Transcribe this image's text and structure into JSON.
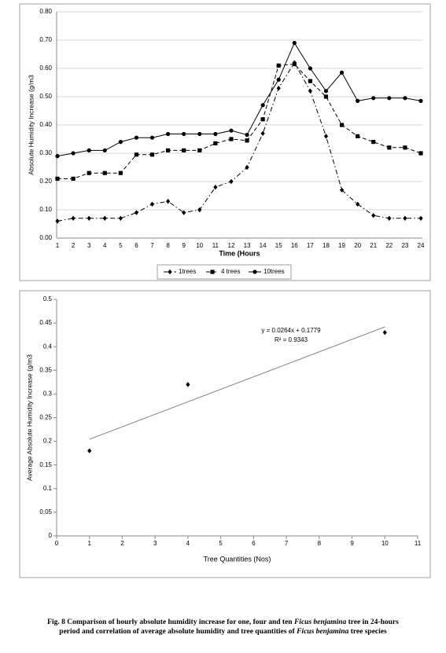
{
  "chart_data": [
    {
      "type": "line",
      "y_label": "Absolute Humidity Increase (g/m3",
      "x_label": "Time (Hours",
      "categories": [
        1,
        2,
        3,
        4,
        5,
        6,
        7,
        8,
        9,
        10,
        11,
        12,
        13,
        14,
        15,
        16,
        17,
        18,
        19,
        20,
        21,
        22,
        23,
        24
      ],
      "series": [
        {
          "name": "1trees",
          "color": "#000000",
          "dash": "dashdot",
          "marker": "diamond",
          "values": [
            0.06,
            0.07,
            0.07,
            0.07,
            0.07,
            0.09,
            0.12,
            0.13,
            0.09,
            0.1,
            0.18,
            0.2,
            0.25,
            0.37,
            0.53,
            0.62,
            0.52,
            0.36,
            0.17,
            0.12,
            0.08,
            0.07,
            0.07,
            0.07
          ]
        },
        {
          "name": "4 trees",
          "color": "#000000",
          "dash": "dashed",
          "marker": "square",
          "values": [
            0.21,
            0.21,
            0.23,
            0.23,
            0.23,
            0.295,
            0.295,
            0.31,
            0.31,
            0.31,
            0.335,
            0.35,
            0.345,
            0.42,
            0.61,
            0.615,
            0.555,
            0.5,
            0.4,
            0.36,
            0.34,
            0.32,
            0.32,
            0.3
          ]
        },
        {
          "name": "10trees",
          "color": "#000000",
          "dash": "solid",
          "marker": "circle",
          "values": [
            0.29,
            0.3,
            0.31,
            0.31,
            0.34,
            0.355,
            0.355,
            0.368,
            0.368,
            0.368,
            0.368,
            0.38,
            0.365,
            0.47,
            0.56,
            0.69,
            0.6,
            0.52,
            0.585,
            0.485,
            0.495,
            0.495,
            0.495,
            0.485
          ]
        }
      ],
      "ylim": [
        0,
        0.8
      ],
      "yticks": [
        {
          "value": 0,
          "label": "0.00"
        },
        {
          "value": 0.1,
          "label": "0.10"
        },
        {
          "value": 0.2,
          "label": "0.20"
        },
        {
          "value": 0.3,
          "label": "0.30"
        },
        {
          "value": 0.4,
          "label": "0.40"
        },
        {
          "value": 0.5,
          "label": "0.50"
        },
        {
          "value": 0.6,
          "label": "0.60"
        },
        {
          "value": 0.7,
          "label": "0.70"
        },
        {
          "value": 0.8,
          "label": "0.80"
        }
      ],
      "grid": true,
      "legend": "bottom"
    },
    {
      "type": "scatter",
      "y_label": "Average Absolute Humidity Increase (g/m3",
      "x_label": "Tree Quantities (Nos)",
      "x": [
        1,
        4,
        10
      ],
      "y": [
        0.18,
        0.32,
        0.43
      ],
      "color": "#000000",
      "xlim": [
        0,
        11
      ],
      "xticks": [
        0,
        1,
        2,
        3,
        4,
        5,
        6,
        7,
        8,
        9,
        10,
        11
      ],
      "ylim": [
        0,
        0.5
      ],
      "yticks": [
        0,
        0.05,
        0.1,
        0.15,
        0.2,
        0.25,
        0.3,
        0.35,
        0.4,
        0.45,
        0.5
      ],
      "grid": false,
      "trendline": {
        "slope": 0.0264,
        "intercept": 0.1779,
        "equation": "y = 0.0264x + 0.1779",
        "r2_label": "R² = 0.9343",
        "color": "#888888"
      }
    }
  ],
  "caption": {
    "lines": [
      [
        {
          "text": "Fig. 8 Comparison of hourly absolute humidity increase for one, four and ten ",
          "italic": false
        },
        {
          "text": "Ficus benjamina",
          "italic": true
        },
        {
          "text": " tree in 24-hours",
          "italic": false
        }
      ],
      [
        {
          "text": "period and correlation of average absolute humidity and tree quantities of ",
          "italic": false
        },
        {
          "text": "Ficus benjamina",
          "italic": true
        },
        {
          "text": " tree species",
          "italic": false
        }
      ]
    ]
  }
}
